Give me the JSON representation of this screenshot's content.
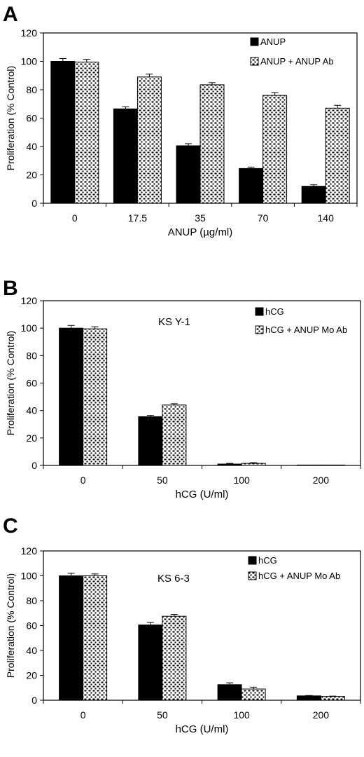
{
  "colors": {
    "solid": "#000000",
    "pattern_bg": "#ffffff",
    "axis": "#000000"
  },
  "chart_data": [
    {
      "panel": "A",
      "type": "bar",
      "xlabel": "ANUP (µg/ml)",
      "ylabel": "Proliferation (% Control)",
      "annotation": "",
      "ylim": [
        0,
        120
      ],
      "yticks": [
        "0",
        "20",
        "40",
        "60",
        "80",
        "100",
        "120"
      ],
      "categories": [
        "0",
        "17.5",
        "35",
        "70",
        "140"
      ],
      "legend_position": "top-right",
      "series": [
        {
          "name": "ANUP",
          "style": "solid",
          "values": [
            100,
            66.5,
            40.5,
            24.5,
            12
          ],
          "errors": [
            2,
            1.5,
            1.5,
            1,
            1
          ]
        },
        {
          "name": "ANUP + ANUP Ab",
          "style": "pattern",
          "values": [
            99.5,
            89,
            83.5,
            76,
            67
          ],
          "errors": [
            2,
            2,
            1.5,
            2,
            2
          ]
        }
      ]
    },
    {
      "panel": "B",
      "type": "bar",
      "xlabel": "hCG  (U/ml)",
      "ylabel": "Proliferation (% Control)",
      "annotation": "KS Y-1",
      "ylim": [
        0,
        120
      ],
      "yticks": [
        "0",
        "20",
        "40",
        "60",
        "80",
        "100",
        "120"
      ],
      "categories": [
        "0",
        "50",
        "100",
        "200"
      ],
      "legend_position": "top-right",
      "series": [
        {
          "name": "hCG",
          "style": "solid",
          "values": [
            100,
            35.5,
            1,
            0.3
          ],
          "errors": [
            2,
            1,
            0.5,
            0.2
          ]
        },
        {
          "name": "hCG + ANUP Mo Ab",
          "style": "pattern",
          "values": [
            99.5,
            44,
            1.5,
            0.3
          ],
          "errors": [
            1.5,
            1,
            0.5,
            0.2
          ]
        }
      ]
    },
    {
      "panel": "C",
      "type": "bar",
      "xlabel": "hCG  (U/ml)",
      "ylabel": "Proliferation (% Control)",
      "annotation": "KS 6-3",
      "ylim": [
        0,
        120
      ],
      "yticks": [
        "0",
        "20",
        "40",
        "60",
        "80",
        "100",
        "120"
      ],
      "categories": [
        "0",
        "50",
        "100",
        "200"
      ],
      "legend_position": "top-right",
      "series": [
        {
          "name": "hCG",
          "style": "solid",
          "values": [
            100,
            60.5,
            12.5,
            3.5
          ],
          "errors": [
            2,
            2,
            1.5,
            0.3
          ]
        },
        {
          "name": "hCG + ANUP Mo Ab",
          "style": "pattern",
          "values": [
            100,
            67.5,
            9,
            3
          ],
          "errors": [
            1.5,
            1.5,
            1.5,
            0.3
          ]
        }
      ]
    }
  ]
}
